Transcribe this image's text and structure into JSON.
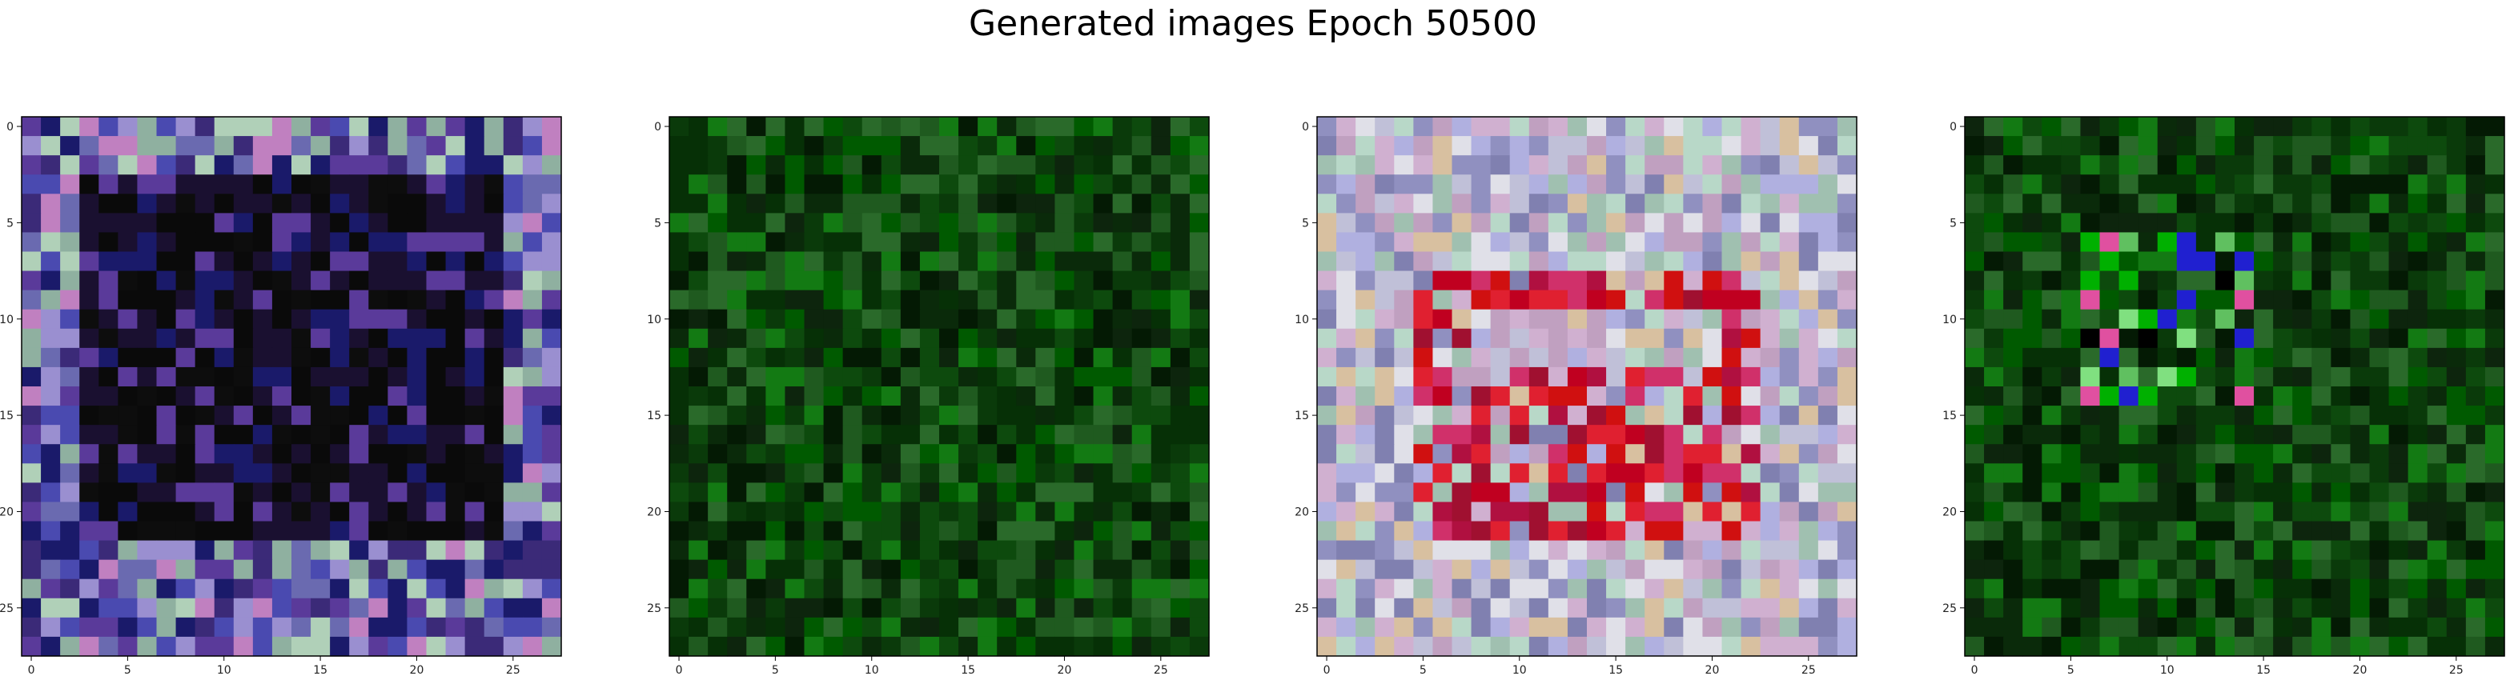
{
  "figure": {
    "title": "Generated images Epoch 50500"
  },
  "chart_data": [
    {
      "type": "heatmap",
      "description_colors": "greyish-blue/purple border, near-black centre",
      "palette": [
        "#1a1030",
        "#0a0a0a",
        "#3b2a78",
        "#6a6ab0",
        "#9a8fd0",
        "#8fb0a0",
        "#b0d0b8",
        "#5a3a9a",
        "#1a1a6a",
        "#0d0d0d",
        "#c080c0",
        "#4a4ab0"
      ],
      "xticks": [
        0,
        5,
        10,
        15,
        20,
        25
      ],
      "yticks": [
        0,
        5,
        10,
        15,
        20,
        25
      ],
      "xlim": [
        -0.5,
        27.5
      ],
      "ylim": [
        27.5,
        -0.5
      ],
      "grid_size": 28,
      "style": "frame"
    },
    {
      "type": "heatmap",
      "description_colors": "dark green noise",
      "palette": [
        "#0a3a0a",
        "#0d4a0d",
        "#005a00",
        "#0a2a0a",
        "#137a13",
        "#063006",
        "#1f5a1f",
        "#0d250d",
        "#2a6a2a",
        "#041a04"
      ],
      "xticks": [
        0,
        5,
        10,
        15,
        20,
        25
      ],
      "yticks": [
        0,
        5,
        10,
        15,
        20,
        25
      ],
      "xlim": [
        -0.5,
        27.5
      ],
      "ylim": [
        27.5,
        -0.5
      ],
      "grid_size": 28,
      "style": "green"
    },
    {
      "type": "heatmap",
      "description_colors": "pastel border, red square in middle",
      "palette": [
        "#c0c0d8",
        "#b8d8c8",
        "#d0b0d0",
        "#9090c0",
        "#e0e0e8",
        "#a0c0b0",
        "#c0a0c0",
        "#8080b0",
        "#d8c0a0",
        "#b0b0e0"
      ],
      "accent": [
        "#d01010",
        "#c00020",
        "#e02030",
        "#b01040",
        "#a01030",
        "#d0306a"
      ],
      "xticks": [
        0,
        5,
        10,
        15,
        20,
        25
      ],
      "yticks": [
        0,
        5,
        10,
        15,
        20,
        25
      ],
      "xlim": [
        -0.5,
        27.5
      ],
      "ylim": [
        27.5,
        -0.5
      ],
      "grid_size": 28,
      "style": "pastel"
    },
    {
      "type": "heatmap",
      "description_colors": "dark green noise with bright centre",
      "palette": [
        "#0a3a0a",
        "#0d4a0d",
        "#005a00",
        "#0a2a0a",
        "#137a13",
        "#063006",
        "#1f5a1f",
        "#0d250d",
        "#2a6a2a",
        "#041a04"
      ],
      "accent": [
        "#00b000",
        "#80e080",
        "#e050a0",
        "#2020d0",
        "#000000",
        "#60c060"
      ],
      "xticks": [
        0,
        5,
        10,
        15,
        20,
        25
      ],
      "yticks": [
        0,
        5,
        10,
        15,
        20,
        25
      ],
      "xlim": [
        -0.5,
        27.5
      ],
      "ylim": [
        27.5,
        -0.5
      ],
      "grid_size": 28,
      "style": "green-bright"
    }
  ]
}
